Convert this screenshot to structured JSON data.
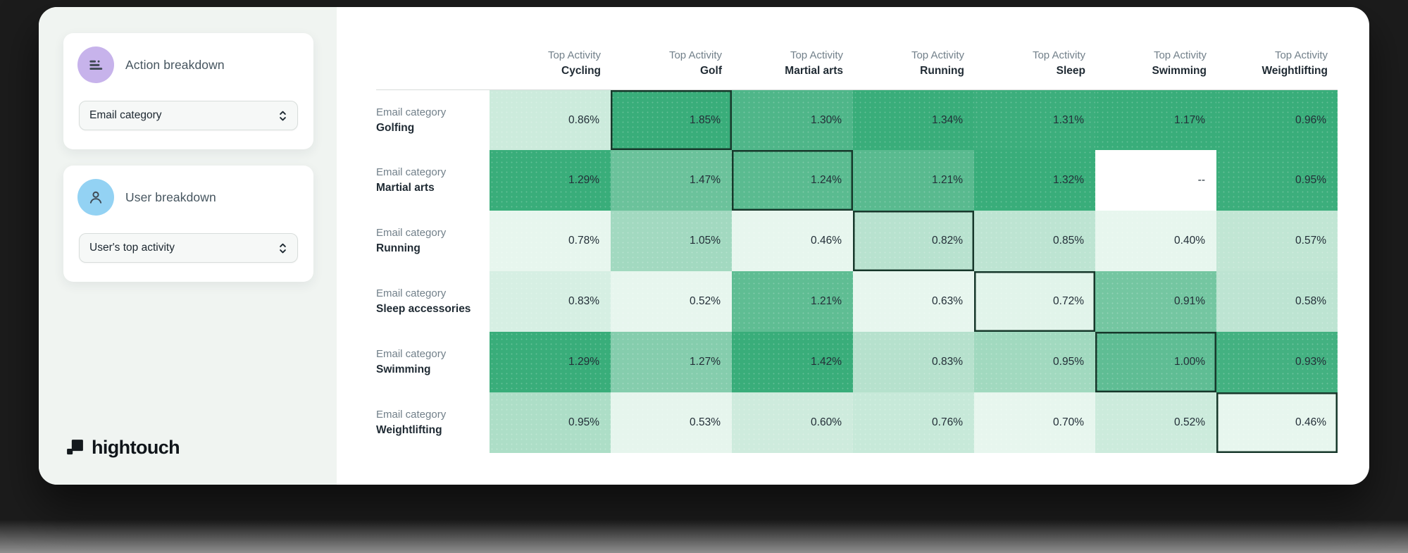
{
  "sidebar": {
    "action_breakdown": {
      "title": "Action breakdown",
      "dropdown_value": "Email category"
    },
    "user_breakdown": {
      "title": "User breakdown",
      "dropdown_value": "User's top activity"
    },
    "logo_text": "hightouch"
  },
  "chart_data": {
    "type": "heatmap",
    "column_header_label": "Top Activity",
    "row_header_label": "Email category",
    "columns": [
      "Cycling",
      "Golf",
      "Martial arts",
      "Running",
      "Sleep",
      "Swimming",
      "Weightlifting"
    ],
    "rows": [
      "Golfing",
      "Martial arts",
      "Running",
      "Sleep accessories",
      "Swimming",
      "Weightlifting"
    ],
    "values": [
      [
        0.86,
        1.85,
        1.3,
        1.34,
        1.31,
        1.17,
        0.96
      ],
      [
        1.29,
        1.47,
        1.24,
        1.21,
        1.32,
        null,
        0.95
      ],
      [
        0.78,
        1.05,
        0.46,
        0.82,
        0.85,
        0.4,
        0.57
      ],
      [
        0.83,
        0.52,
        1.21,
        0.63,
        0.72,
        0.91,
        0.58
      ],
      [
        1.29,
        1.27,
        1.42,
        0.83,
        0.95,
        1.0,
        0.93
      ],
      [
        0.95,
        0.53,
        0.6,
        0.76,
        0.7,
        0.52,
        0.46
      ]
    ],
    "value_suffix": "%",
    "empty_display": "--",
    "highlighted_cells": [
      [
        0,
        1
      ],
      [
        1,
        2
      ],
      [
        2,
        3
      ],
      [
        3,
        4
      ],
      [
        4,
        5
      ],
      [
        5,
        6
      ]
    ],
    "legend": "cells shaded per column from light (column min) to dark green (column max)",
    "colors": {
      "cell_min": "#E7F6EE",
      "cell_max": "#39AD7A",
      "highlight_border": "#17382B",
      "empty_cell": "#FFFFFF"
    }
  },
  "theme": {
    "sidebar_bg": "#F0F4F1",
    "accent_purple": "#C7B3EB",
    "accent_blue": "#93D2F3",
    "text_dark": "#1F2A33",
    "text_gray": "#72808A"
  }
}
